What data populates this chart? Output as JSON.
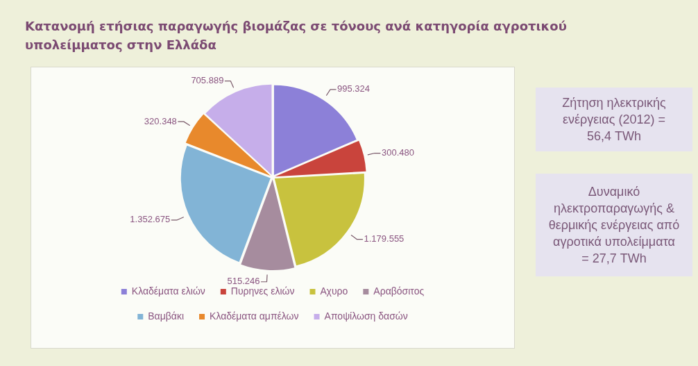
{
  "chart_data": {
    "type": "pie",
    "title": "Κατανομή ετήσιας παραγωγής βιομάζας σε τόνους ανά κατηγορία αγροτικού υπολείμματος στην Ελλάδα",
    "categories": [
      "Κλαδέματα ελιών",
      "Πυρηνες ελιών",
      "Αχυρο",
      "Αραβόσιτος",
      "Βαμβάκι",
      "Κλαδέματα αμπέλων",
      "Αποψίλωση δασών"
    ],
    "values": [
      995324,
      300480,
      1179555,
      515246,
      1352675,
      320348,
      705889
    ],
    "value_labels": [
      "995.324",
      "300.480",
      "1.179.555",
      "515.246",
      "1.352.675",
      "320.348",
      "705.889"
    ],
    "colors": [
      "#8c80d8",
      "#c9443c",
      "#c8c23e",
      "#a68c9e",
      "#82b4d6",
      "#e8892c",
      "#c6aeea"
    ],
    "legend": "bottom",
    "annotations": [
      "Ζήτηση ηλεκτρικής ενέργειας (2012) = 56,4 TWh",
      "Δυναμικό ηλεκτροπαραγωγής & θερμικής ενέργειας από αγροτικά υπολείμματα = 27,7 TWh"
    ]
  }
}
